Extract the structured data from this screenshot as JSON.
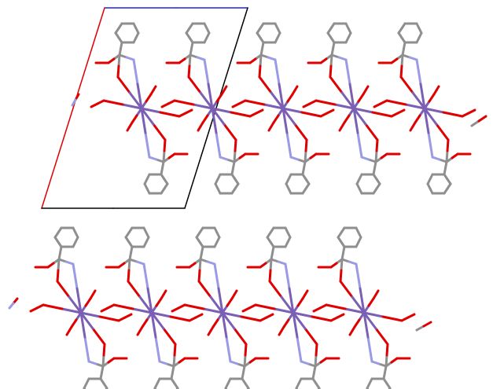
{
  "viewer": {
    "background": "#ffffff",
    "colors": {
      "carbon": "#8f8f8f",
      "oxygen": "#e00000",
      "nitrogen": "#9a9ae6",
      "metal": "#7b5fb5",
      "axis_a": "#e00000",
      "axis_b": "#2020e0",
      "axis_c": "#000000"
    }
  }
}
